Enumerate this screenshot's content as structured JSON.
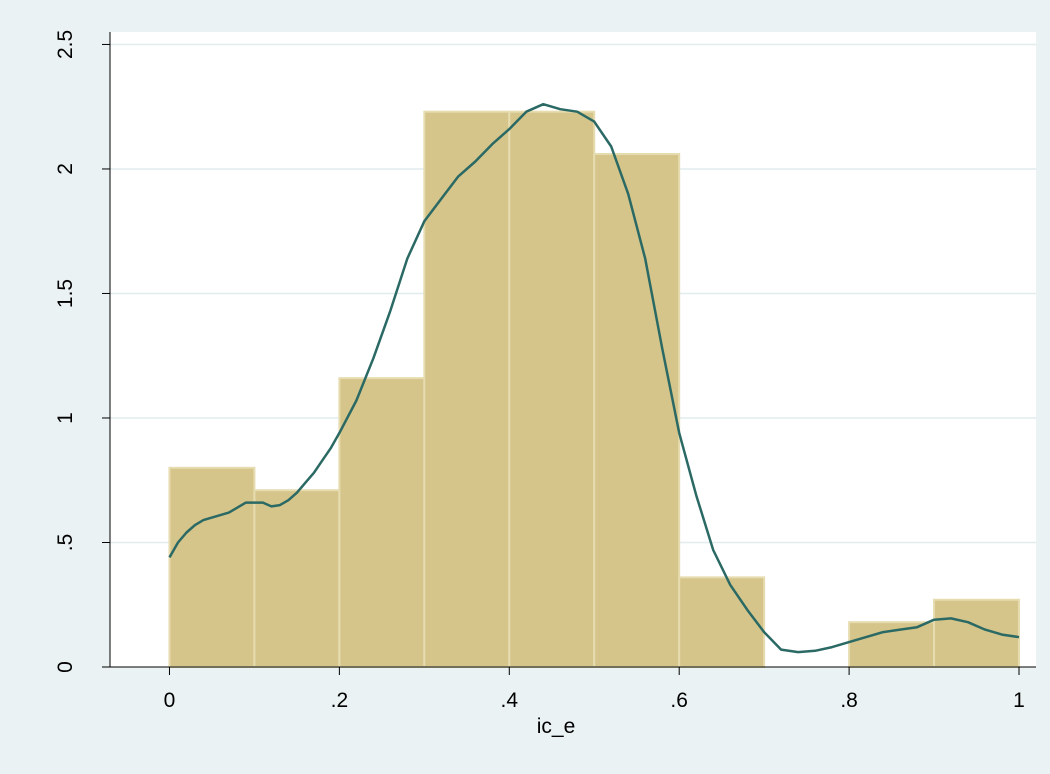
{
  "chart_data": {
    "type": "bar",
    "title": "",
    "xlabel": "ic_e",
    "ylabel": "",
    "xlim": [
      -0.07,
      1.02
    ],
    "ylim": [
      0,
      2.55
    ],
    "x_ticks": [
      0,
      0.2,
      0.4,
      0.6,
      0.8,
      1
    ],
    "x_tick_labels": [
      "0",
      ".2",
      ".4",
      ".6",
      ".8",
      "1"
    ],
    "y_ticks": [
      0,
      0.5,
      1,
      1.5,
      2,
      2.5
    ],
    "y_tick_labels": [
      "0",
      ".5",
      "1",
      "1.5",
      "2",
      "2.5"
    ],
    "grid": true,
    "bins": [
      {
        "x0": 0.0,
        "x1": 0.1,
        "value": 0.8
      },
      {
        "x0": 0.1,
        "x1": 0.2,
        "value": 0.71
      },
      {
        "x0": 0.2,
        "x1": 0.3,
        "value": 1.16
      },
      {
        "x0": 0.3,
        "x1": 0.4,
        "value": 2.23
      },
      {
        "x0": 0.4,
        "x1": 0.5,
        "value": 2.23
      },
      {
        "x0": 0.5,
        "x1": 0.6,
        "value": 2.06
      },
      {
        "x0": 0.6,
        "x1": 0.7,
        "value": 0.36
      },
      {
        "x0": 0.7,
        "x1": 0.8,
        "value": 0.0
      },
      {
        "x0": 0.8,
        "x1": 0.9,
        "value": 0.18
      },
      {
        "x0": 0.9,
        "x1": 1.0,
        "value": 0.27
      }
    ],
    "density_curve": {
      "x": [
        0,
        0.01,
        0.02,
        0.03,
        0.04,
        0.05,
        0.06,
        0.07,
        0.08,
        0.09,
        0.1,
        0.11,
        0.12,
        0.13,
        0.14,
        0.15,
        0.16,
        0.17,
        0.18,
        0.19,
        0.2,
        0.22,
        0.24,
        0.26,
        0.28,
        0.3,
        0.32,
        0.34,
        0.36,
        0.38,
        0.4,
        0.42,
        0.44,
        0.46,
        0.48,
        0.5,
        0.52,
        0.54,
        0.56,
        0.58,
        0.6,
        0.62,
        0.64,
        0.66,
        0.68,
        0.7,
        0.72,
        0.74,
        0.76,
        0.78,
        0.8,
        0.82,
        0.84,
        0.86,
        0.88,
        0.9,
        0.92,
        0.94,
        0.96,
        0.98,
        1.0
      ],
      "y": [
        0.44,
        0.5,
        0.54,
        0.57,
        0.59,
        0.6,
        0.61,
        0.62,
        0.64,
        0.66,
        0.66,
        0.66,
        0.645,
        0.65,
        0.67,
        0.7,
        0.74,
        0.78,
        0.83,
        0.88,
        0.94,
        1.07,
        1.24,
        1.43,
        1.64,
        1.79,
        1.88,
        1.97,
        2.03,
        2.1,
        2.16,
        2.23,
        2.26,
        2.24,
        2.23,
        2.19,
        2.09,
        1.9,
        1.64,
        1.28,
        0.94,
        0.69,
        0.47,
        0.33,
        0.23,
        0.14,
        0.07,
        0.06,
        0.065,
        0.08,
        0.1,
        0.12,
        0.14,
        0.15,
        0.16,
        0.19,
        0.195,
        0.18,
        0.15,
        0.13,
        0.12
      ]
    },
    "colors": {
      "background": "#eaf2f3",
      "plot_background": "#ffffff",
      "bar_fill": "#d5c58a",
      "bar_edge": "#e6dcb0",
      "curve": "#2b6964",
      "grid": "#e1ecee"
    }
  }
}
